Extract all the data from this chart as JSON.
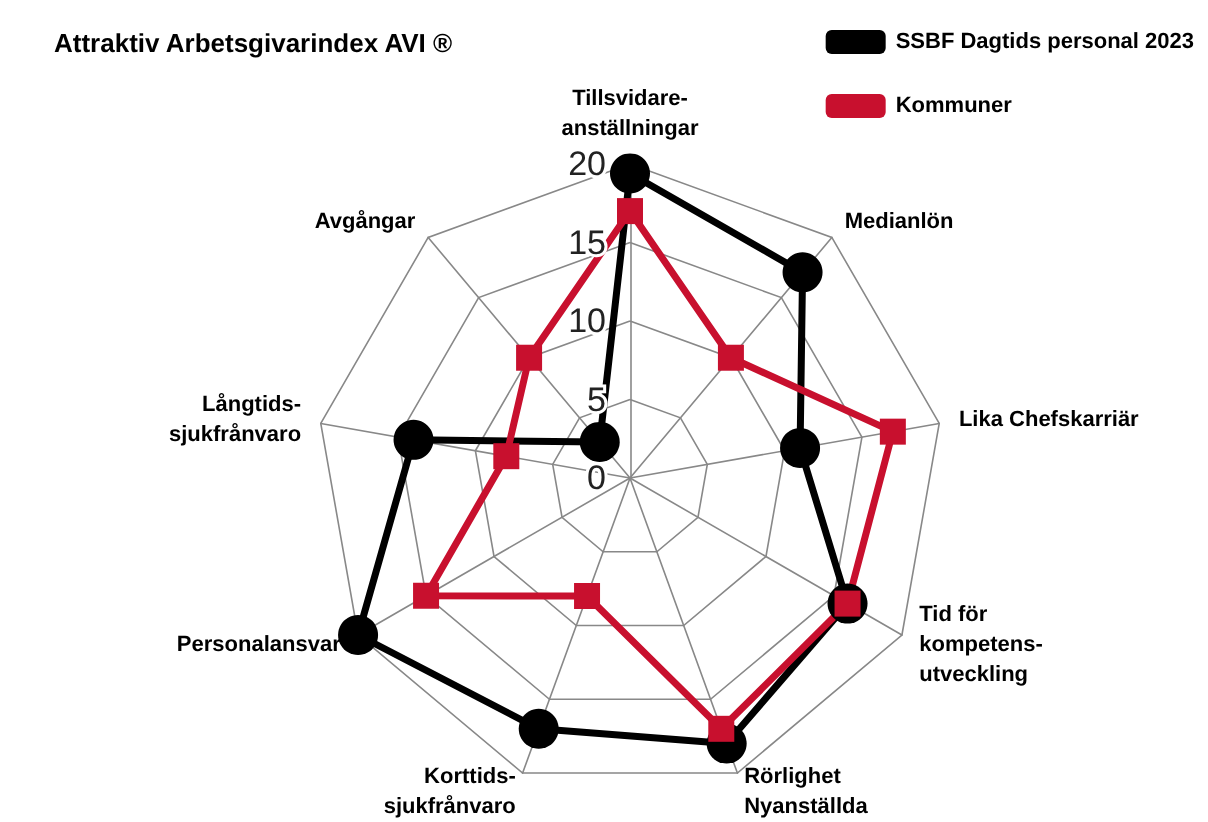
{
  "chart_data": {
    "type": "radar",
    "title": "Attraktiv Arbetsgivarindex AVI ®",
    "categories": [
      "Tillsvidare-anställningar",
      "Medianlön",
      "Lika Chefskarriär",
      "Tid för kompetens-utveckling",
      "Rörlighet Nyanställda",
      "Korttids-sjukfrånvaro",
      "Personalansvar",
      "Långtids-sjukfrånvaro",
      "Avgångar"
    ],
    "series": [
      {
        "name": "SSBF Dagtids personal 2023",
        "color": "#000000",
        "marker": "circle",
        "values": [
          19.4,
          17.1,
          11.0,
          16.0,
          18.0,
          17.0,
          20.0,
          14.0,
          3.0
        ]
      },
      {
        "name": "Kommuner",
        "color": "#c8102e",
        "marker": "square",
        "values": [
          17.0,
          10.0,
          17.0,
          16.0,
          17.0,
          8.0,
          15.0,
          8.0,
          10.0
        ]
      }
    ],
    "ylim": [
      0,
      20
    ],
    "yticks": [
      0,
      5,
      10,
      15,
      20
    ],
    "grid": true,
    "legend": "top right"
  }
}
